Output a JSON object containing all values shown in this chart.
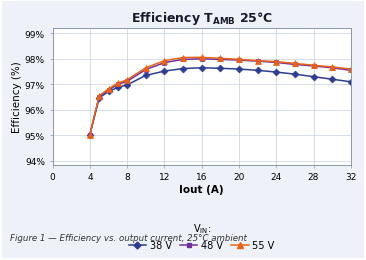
{
  "title": "Efficiency T$_{\\mathregular{AMB}}$ 25°C",
  "xlabel": "Iout (A)",
  "ylabel": "Efficiency (%)",
  "caption": "Figure 1 — Efficiency vs. output current, 25°C ambient",
  "xlim": [
    0,
    32
  ],
  "ylim": [
    0.9385,
    0.992
  ],
  "xticks": [
    0,
    4,
    8,
    12,
    16,
    20,
    24,
    28,
    32
  ],
  "yticks": [
    0.94,
    0.95,
    0.96,
    0.97,
    0.98,
    0.99
  ],
  "ytick_labels": [
    "94%",
    "95%",
    "96%",
    "97%",
    "98%",
    "99%"
  ],
  "series": [
    {
      "label": "38 V",
      "color": "#2E3D8F",
      "marker": "D",
      "markersize": 3.5,
      "x": [
        4,
        5,
        6,
        7,
        8,
        10,
        12,
        14,
        16,
        18,
        20,
        22,
        24,
        26,
        28,
        30,
        32
      ],
      "y": [
        0.9503,
        0.9647,
        0.9672,
        0.9688,
        0.9698,
        0.9735,
        0.9752,
        0.9762,
        0.9765,
        0.9763,
        0.976,
        0.9755,
        0.9748,
        0.974,
        0.973,
        0.972,
        0.971
      ]
    },
    {
      "label": "48 V",
      "color": "#7030A0",
      "marker": "s",
      "markersize": 3.5,
      "x": [
        4,
        5,
        6,
        7,
        8,
        10,
        12,
        14,
        16,
        18,
        20,
        22,
        24,
        26,
        28,
        30,
        32
      ],
      "y": [
        0.9503,
        0.9652,
        0.9678,
        0.97,
        0.9712,
        0.9758,
        0.9785,
        0.9798,
        0.98,
        0.9798,
        0.9795,
        0.9791,
        0.9786,
        0.9778,
        0.9772,
        0.9765,
        0.9755
      ]
    },
    {
      "label": "55 V",
      "color": "#E8621A",
      "marker": "^",
      "markersize": 4.5,
      "x": [
        4,
        5,
        6,
        7,
        8,
        10,
        12,
        14,
        16,
        18,
        20,
        22,
        24,
        26,
        28,
        30,
        32
      ],
      "y": [
        0.9503,
        0.9655,
        0.9682,
        0.9705,
        0.9718,
        0.9765,
        0.9793,
        0.9805,
        0.9806,
        0.9802,
        0.9798,
        0.9793,
        0.9789,
        0.9782,
        0.9775,
        0.9768,
        0.976
      ]
    }
  ],
  "legend_title": "V$_{\\mathregular{IN}}$:",
  "fig_bg_color": "#EEF2F8",
  "plot_bg_color": "#FFFFFF",
  "border_color": "#7A9EC8",
  "grid_color": "#C8D0DC",
  "spine_color": "#8899AA"
}
